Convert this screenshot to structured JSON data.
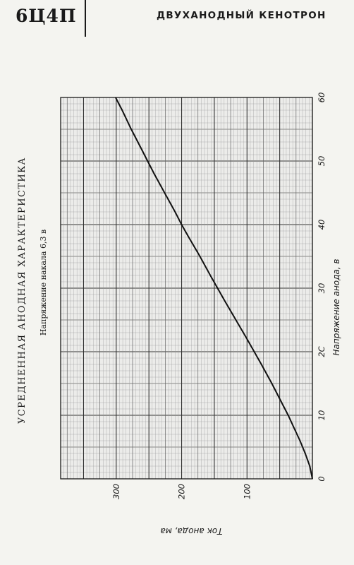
{
  "header": {
    "tube_code": "6Ц4П",
    "tube_type": "ДВУХАНОДНЫЙ КЕНОТРОН"
  },
  "chart_data": {
    "type": "line",
    "title": "УСРЕДНЕННАЯ АНОДНАЯ ХАРАКТЕРИСТИКА",
    "subtitle": "Напряжение накала 6,3 в",
    "xlabel": "Напряжение анода, в",
    "ylabel": "Ток анода, ма",
    "xlim": [
      0,
      60
    ],
    "ylim": [
      0,
      385
    ],
    "x_ticks": [
      "0",
      "10",
      "2С",
      "30",
      "40",
      "50",
      "60"
    ],
    "x_tick_values": [
      0,
      10,
      20,
      30,
      40,
      50,
      60
    ],
    "y_ticks": [
      "100",
      "200",
      "300"
    ],
    "y_tick_values": [
      100,
      200,
      300
    ],
    "grid": true,
    "series": [
      {
        "x": [
          0,
          2,
          4,
          6,
          8,
          10,
          12,
          15,
          18,
          20,
          22,
          25,
          28,
          30,
          32,
          35,
          38,
          40,
          42,
          45,
          48,
          50,
          52,
          55,
          58,
          60
        ],
        "y": [
          0,
          4,
          11,
          19,
          28,
          37,
          47,
          62,
          78,
          89,
          100,
          117,
          134,
          145,
          156,
          172,
          189,
          200,
          210,
          226,
          242,
          252,
          262,
          277,
          291,
          301
        ]
      }
    ]
  }
}
